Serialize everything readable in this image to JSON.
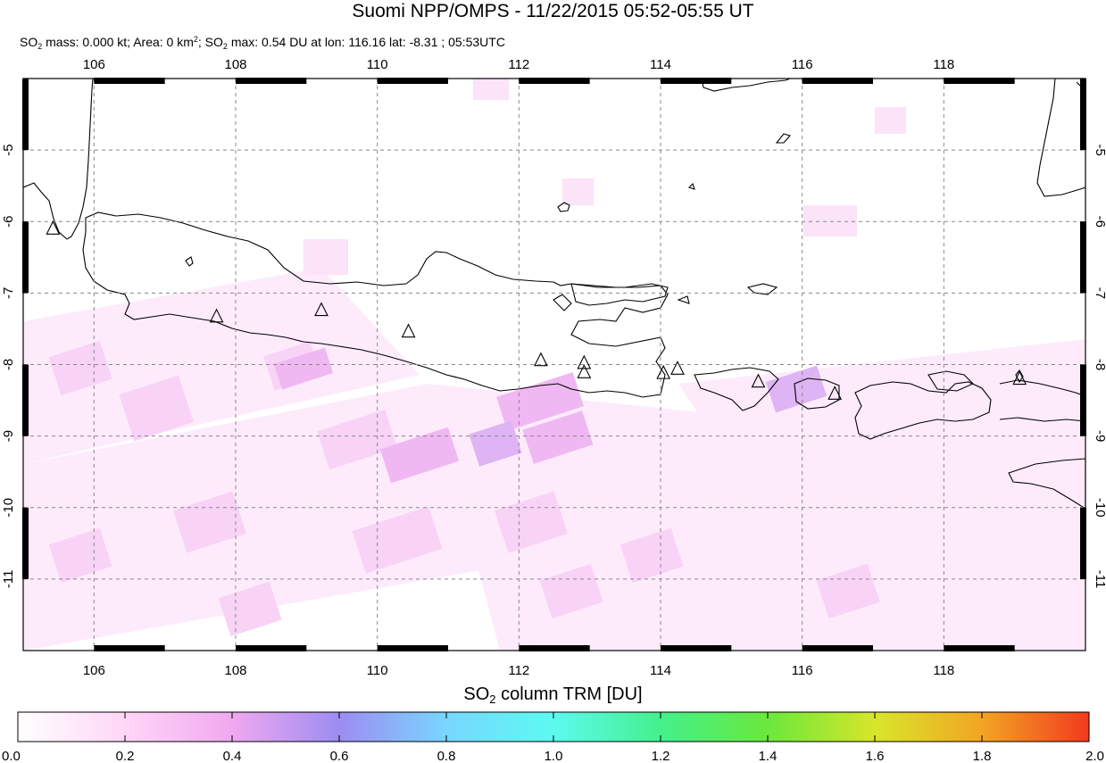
{
  "title": "Suomi NPP/OMPS - 11/22/2015 05:52-05:55 UT",
  "subtitle": {
    "p1": "SO",
    "p2": " mass: 0.000 kt; Area: 0 km",
    "p3": "; SO",
    "p4": " max: 0.54 DU at lon: 116.16 lat: -8.31 ; 05:53UTC",
    "sub2": "2",
    "sup2": "2"
  },
  "map": {
    "lon_range": [
      105,
      120
    ],
    "lat_range": [
      -12,
      -4
    ],
    "lon_ticks": [
      106,
      108,
      110,
      112,
      114,
      116,
      118
    ],
    "lon_tick_labels": [
      "106",
      "108",
      "110",
      "112",
      "114",
      "116",
      "118"
    ],
    "lat_ticks": [
      -5,
      -6,
      -7,
      -8,
      -9,
      -10,
      -11
    ],
    "lat_tick_labels": [
      "-5",
      "-6",
      "-7",
      "-8",
      "-9",
      "-10",
      "-11"
    ],
    "volcanoes": [
      [
        105.42,
        -6.1
      ],
      [
        107.73,
        -7.33
      ],
      [
        109.21,
        -7.24
      ],
      [
        110.44,
        -7.54
      ],
      [
        112.31,
        -7.94
      ],
      [
        112.92,
        -7.98
      ],
      [
        112.92,
        -8.11
      ],
      [
        114.04,
        -8.12
      ],
      [
        114.24,
        -8.06
      ],
      [
        115.38,
        -8.24
      ],
      [
        116.46,
        -8.41
      ],
      [
        119.07,
        -8.2
      ]
    ],
    "so2_max_color": "#c9b8f2"
  },
  "colorbar": {
    "title_main": "SO",
    "title_sub": "2",
    "title_rest": " column TRM [DU]",
    "ticks": [
      "0.0",
      "0.2",
      "0.4",
      "0.6",
      "0.8",
      "1.0",
      "1.2",
      "1.4",
      "1.6",
      "1.8",
      "2.0"
    ],
    "colors": [
      "#ffffff",
      "#ffd6f7",
      "#f0a8f0",
      "#9d8cf2",
      "#78d6ff",
      "#5cfaf0",
      "#44f08c",
      "#6ae83c",
      "#d8e62a",
      "#f3a424",
      "#f23a1e"
    ]
  }
}
